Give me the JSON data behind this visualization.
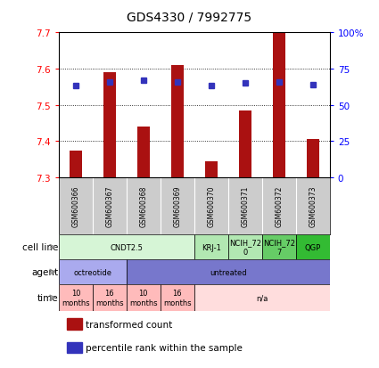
{
  "title": "GDS4330 / 7992775",
  "samples": [
    "GSM600366",
    "GSM600367",
    "GSM600368",
    "GSM600369",
    "GSM600370",
    "GSM600371",
    "GSM600372",
    "GSM600373"
  ],
  "bar_values": [
    7.375,
    7.59,
    7.44,
    7.61,
    7.345,
    7.485,
    7.7,
    7.405
  ],
  "percentile_values": [
    63,
    66,
    67,
    66,
    63,
    65,
    66,
    64
  ],
  "ylim": [
    7.3,
    7.7
  ],
  "yticks_left": [
    7.3,
    7.4,
    7.5,
    7.6,
    7.7
  ],
  "yticks_right": [
    0,
    25,
    50,
    75,
    100
  ],
  "bar_color": "#aa1111",
  "dot_color": "#3333bb",
  "cell_line_data": [
    {
      "label": "CNDT2.5",
      "span": [
        0,
        4
      ],
      "color": "#d6f5d6"
    },
    {
      "label": "KRJ-1",
      "span": [
        4,
        5
      ],
      "color": "#b2e8b2"
    },
    {
      "label": "NCIH_72\n0",
      "span": [
        5,
        6
      ],
      "color": "#b2e8b2"
    },
    {
      "label": "NCIH_72\n7",
      "span": [
        6,
        7
      ],
      "color": "#66cc66"
    },
    {
      "label": "QGP",
      "span": [
        7,
        8
      ],
      "color": "#33bb33"
    }
  ],
  "agent_data": [
    {
      "label": "octreotide",
      "span": [
        0,
        2
      ],
      "color": "#aaaaee"
    },
    {
      "label": "untreated",
      "span": [
        2,
        8
      ],
      "color": "#7777cc"
    }
  ],
  "time_data": [
    {
      "label": "10\nmonths",
      "span": [
        0,
        1
      ],
      "color": "#ffbbbb"
    },
    {
      "label": "16\nmonths",
      "span": [
        1,
        2
      ],
      "color": "#ffbbbb"
    },
    {
      "label": "10\nmonths",
      "span": [
        2,
        3
      ],
      "color": "#ffbbbb"
    },
    {
      "label": "16\nmonths",
      "span": [
        3,
        4
      ],
      "color": "#ffbbbb"
    },
    {
      "label": "n/a",
      "span": [
        4,
        8
      ],
      "color": "#ffdddd"
    }
  ],
  "row_labels": [
    "cell line",
    "agent",
    "time"
  ],
  "legend_items": [
    {
      "label": "transformed count",
      "color": "#aa1111"
    },
    {
      "label": "percentile rank within the sample",
      "color": "#3333bb"
    }
  ],
  "background_color": "#ffffff",
  "sample_box_color": "#cccccc"
}
